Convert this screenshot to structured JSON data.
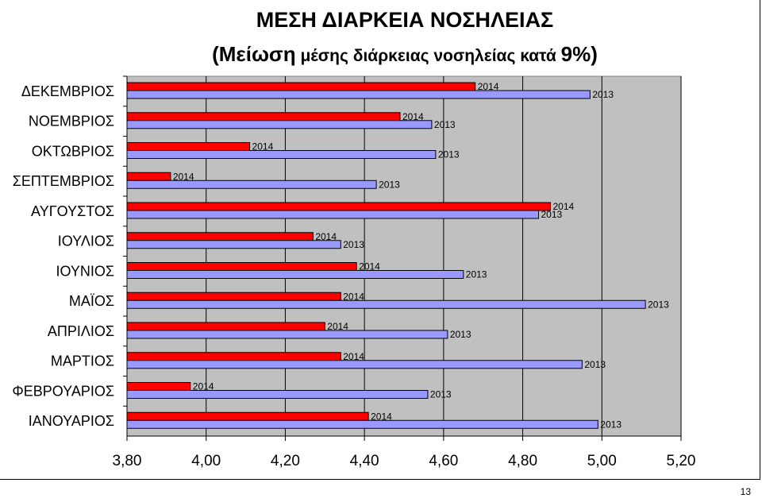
{
  "chart_data": {
    "type": "bar",
    "orientation": "horizontal",
    "title": "ΜΕΣΗ ΔΙΑΡΚΕΙΑ ΝΟΣΗΛΕΙΑΣ",
    "subtitle": {
      "open": "(",
      "emph": "Μείωση",
      "middle": " μέσης διάρκειας νοσηλείας κατά ",
      "pct": "9%",
      "close": ")"
    },
    "categories": [
      "ΔΕΚΕΜΒΡΙΟΣ",
      "ΝΟΕΜΒΡΙΟΣ",
      "ΟΚΤΩΒΡΙΟΣ",
      "ΣΕΠΤΕΜΒΡΙΟΣ",
      "ΑΥΓΟΥΣΤΟΣ",
      "ΙΟΥΛΙΟΣ",
      "ΙΟΥΝΙΟΣ",
      "ΜΑΪΟΣ",
      "ΑΠΡΙΛΙΟΣ",
      "ΜΑΡΤΙΟΣ",
      "ΦΕΒΡΟΥΑΡΙΟΣ",
      "ΙΑΝΟΥΑΡΙΟΣ"
    ],
    "series": [
      {
        "name": "2014",
        "color": "#ff0000",
        "values": [
          4.68,
          4.49,
          4.11,
          3.91,
          4.87,
          4.27,
          4.38,
          4.34,
          4.3,
          4.34,
          3.96,
          4.41
        ]
      },
      {
        "name": "2013",
        "color": "#9999ff",
        "values": [
          4.97,
          4.57,
          4.58,
          4.43,
          4.84,
          4.34,
          4.65,
          5.11,
          4.61,
          4.95,
          4.56,
          4.99
        ]
      }
    ],
    "xlim": [
      3.8,
      5.2
    ],
    "xticks": [
      3.8,
      4.0,
      4.2,
      4.4,
      4.6,
      4.8,
      5.0,
      5.2
    ],
    "xtick_labels": [
      "3,80",
      "4,00",
      "4,20",
      "4,40",
      "4,60",
      "4,80",
      "5,00",
      "5,20"
    ],
    "grid": "vertical",
    "plot_background": "#c0c0c0"
  },
  "page_number": "13"
}
